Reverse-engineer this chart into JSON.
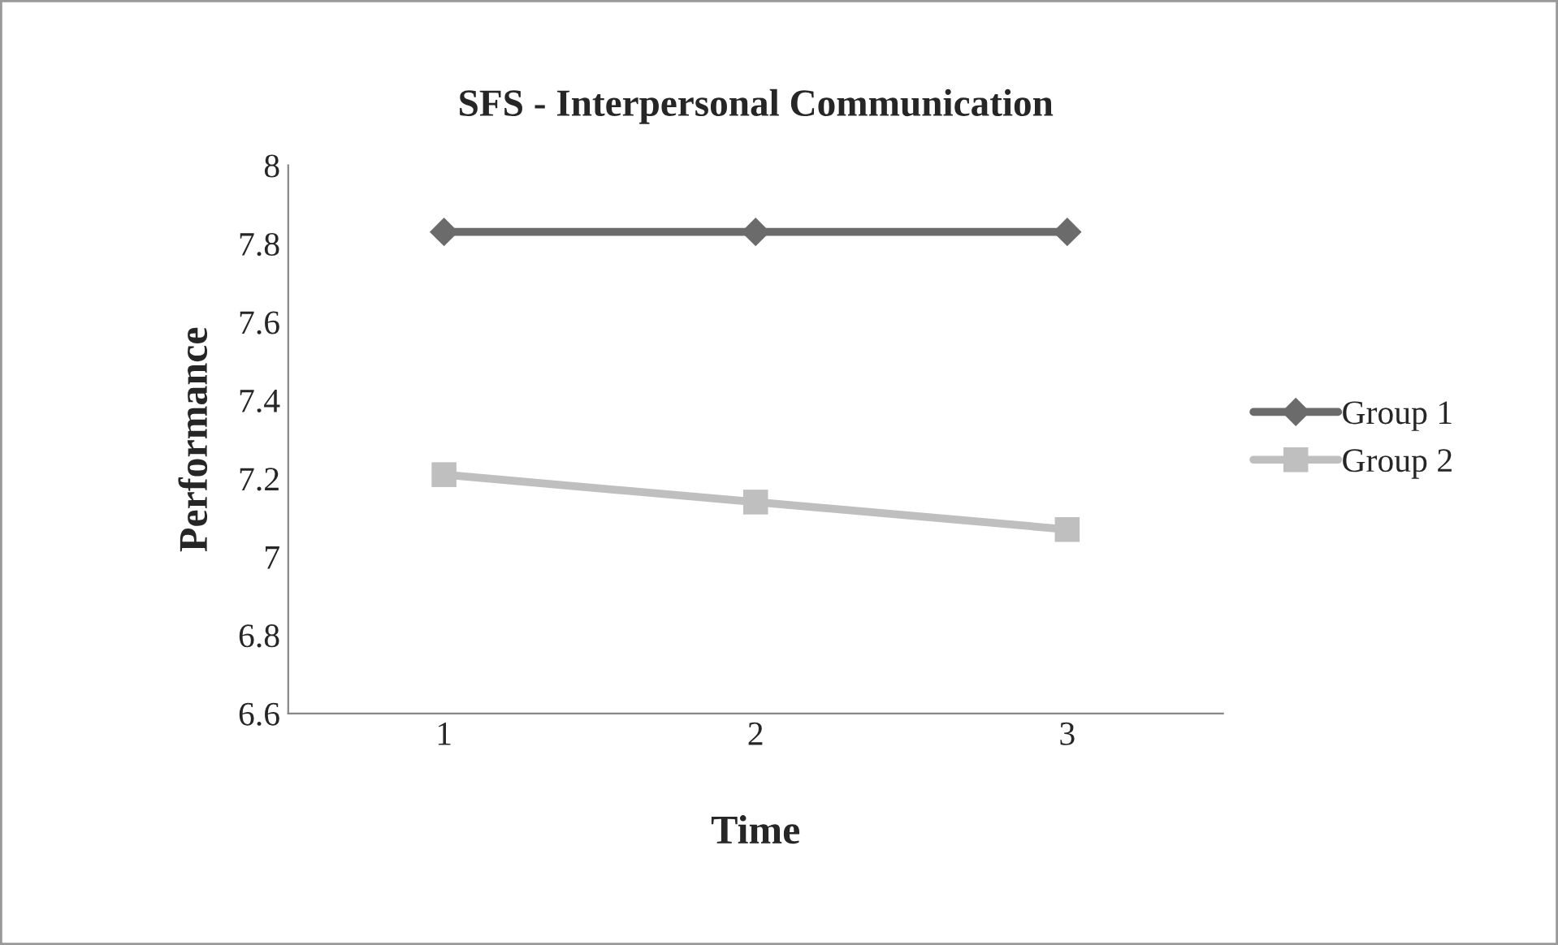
{
  "chart_data": {
    "type": "line",
    "title": "SFS - Interpersonal Communication",
    "xlabel": "Time",
    "ylabel": "Performance",
    "categories": [
      "1",
      "2",
      "3"
    ],
    "series": [
      {
        "name": "Group 1",
        "color": "#6b6b6b",
        "marker": "diamond",
        "values": [
          7.83,
          7.83,
          7.83
        ]
      },
      {
        "name": "Group 2",
        "color": "#bfbfbf",
        "marker": "square",
        "values": [
          7.21,
          7.14,
          7.07
        ]
      }
    ],
    "ylim": [
      6.6,
      8
    ],
    "yticks": [
      6.6,
      6.8,
      7,
      7.2,
      7.4,
      7.6,
      7.8,
      8
    ],
    "grid": false,
    "legend": "right",
    "line_style": "solid"
  }
}
